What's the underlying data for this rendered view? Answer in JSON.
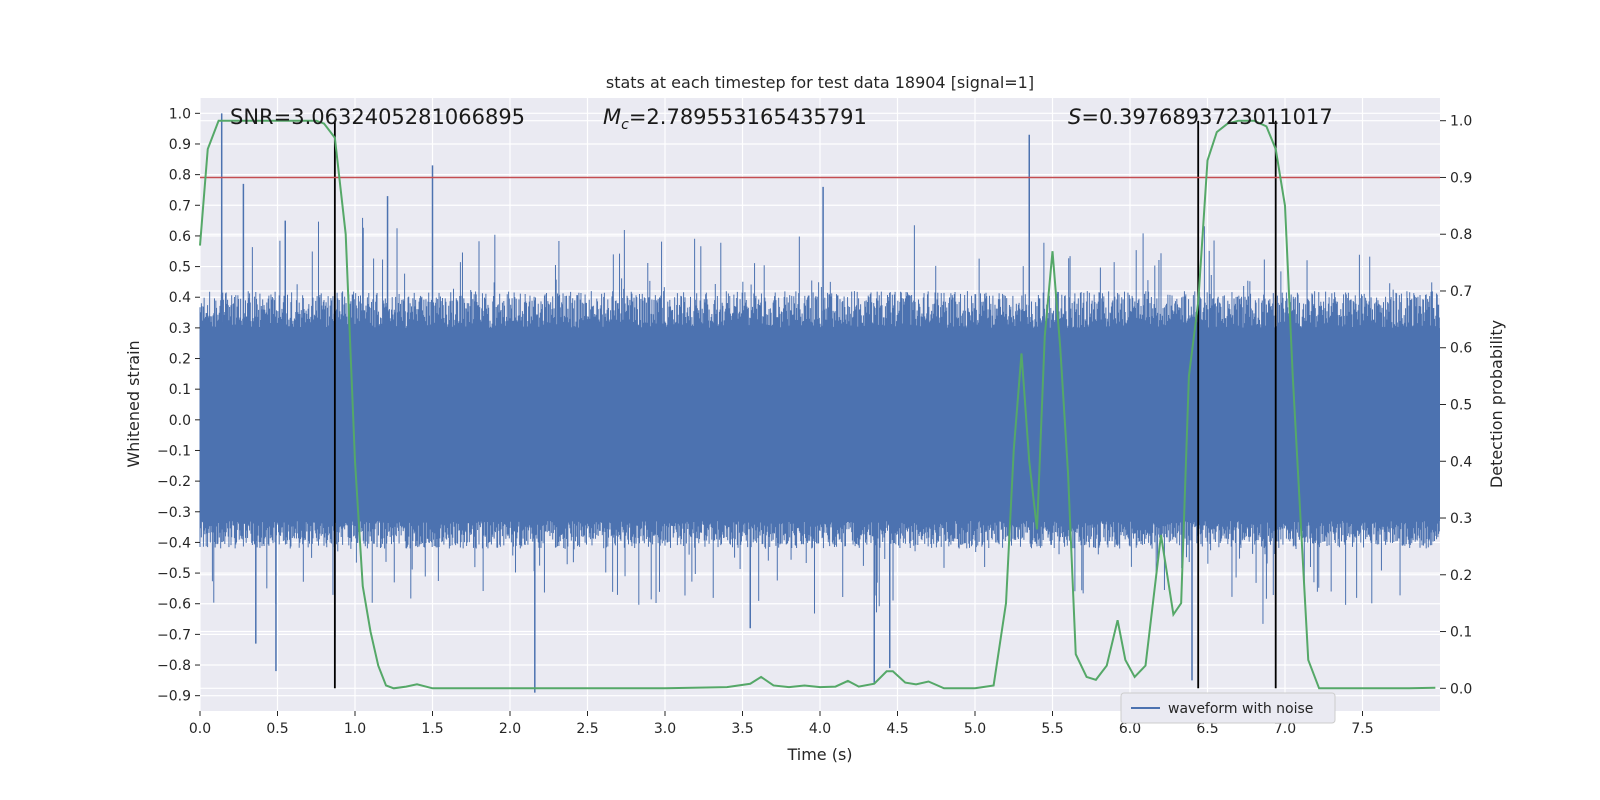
{
  "chart_data": {
    "type": "line",
    "title": "stats at each timestep for test data 18904 [signal=1]",
    "xlabel": "Time (s)",
    "ylabel_left": "Whitened strain",
    "ylabel_right": "Detection probability",
    "xlim": [
      0.0,
      8.0
    ],
    "ylim_left": [
      -0.95,
      1.05
    ],
    "ylim_right": [
      -0.04,
      1.04
    ],
    "x_ticks": [
      0.0,
      0.5,
      1.0,
      1.5,
      2.0,
      2.5,
      3.0,
      3.5,
      4.0,
      4.5,
      5.0,
      5.5,
      6.0,
      6.5,
      7.0,
      7.5
    ],
    "x_tick_labels": [
      "0.0",
      "0.5",
      "1.0",
      "1.5",
      "2.0",
      "2.5",
      "3.0",
      "3.5",
      "4.0",
      "4.5",
      "5.0",
      "5.5",
      "6.0",
      "6.5",
      "7.0",
      "7.5"
    ],
    "y_left_ticks": [
      -0.9,
      -0.8,
      -0.7,
      -0.6,
      -0.5,
      -0.4,
      -0.3,
      -0.2,
      -0.1,
      0.0,
      0.1,
      0.2,
      0.3,
      0.4,
      0.5,
      0.6,
      0.7,
      0.8,
      0.9,
      1.0
    ],
    "y_left_tick_labels": [
      "−0.9",
      "−0.8",
      "−0.7",
      "−0.6",
      "−0.5",
      "−0.4",
      "−0.3",
      "−0.2",
      "−0.1",
      "0.0",
      "0.1",
      "0.2",
      "0.3",
      "0.4",
      "0.5",
      "0.6",
      "0.7",
      "0.8",
      "0.9",
      "1.0"
    ],
    "y_right_ticks": [
      0.0,
      0.1,
      0.2,
      0.3,
      0.4,
      0.5,
      0.6,
      0.7,
      0.8,
      0.9,
      1.0
    ],
    "y_right_tick_labels": [
      "0.0",
      "0.1",
      "0.2",
      "0.3",
      "0.4",
      "0.5",
      "0.6",
      "0.7",
      "0.8",
      "0.9",
      "1.0"
    ],
    "annotations": {
      "snr": "SNR=3.0632405281066895",
      "mc_symbol": "M",
      "mc_sub": "c",
      "mc_value": "=2.789553165435791",
      "s_symbol": "S",
      "s_value": "=0.3976893723011017"
    },
    "legend": {
      "label": "waveform with noise",
      "position": "lower-right"
    },
    "threshold_line": {
      "axis": "right",
      "value": 0.9,
      "color": "#c44e52"
    },
    "vertical_lines": {
      "x": [
        0.87,
        6.44,
        6.94
      ],
      "color": "#000000"
    },
    "waveform": {
      "name": "waveform with noise",
      "color": "#4c72b0",
      "dense_band": [
        -0.33,
        0.3
      ],
      "typical_upper": 0.42,
      "typical_lower": -0.42,
      "peaks": [
        {
          "x": 0.14,
          "y": 1.0
        },
        {
          "x": 0.28,
          "y": 0.77
        },
        {
          "x": 0.55,
          "y": 0.65
        },
        {
          "x": 1.21,
          "y": 0.73
        },
        {
          "x": 1.5,
          "y": 0.83
        },
        {
          "x": 4.02,
          "y": 0.76
        },
        {
          "x": 5.35,
          "y": 0.93
        },
        {
          "x": 0.36,
          "y": -0.73
        },
        {
          "x": 0.49,
          "y": -0.82
        },
        {
          "x": 0.87,
          "y": -0.71
        },
        {
          "x": 2.16,
          "y": -0.89
        },
        {
          "x": 3.55,
          "y": -0.68
        },
        {
          "x": 4.35,
          "y": -0.86
        },
        {
          "x": 4.45,
          "y": -0.81
        },
        {
          "x": 6.4,
          "y": -0.85
        }
      ]
    },
    "detection_probability": {
      "name": "detection probability",
      "color": "#55a868",
      "x": [
        0.0,
        0.05,
        0.12,
        0.2,
        0.3,
        0.45,
        0.6,
        0.75,
        0.8,
        0.87,
        0.94,
        1.0,
        1.05,
        1.1,
        1.15,
        1.2,
        1.25,
        1.33,
        1.4,
        1.5,
        1.7,
        2.0,
        2.5,
        3.0,
        3.4,
        3.55,
        3.62,
        3.7,
        3.8,
        3.9,
        4.0,
        4.1,
        4.18,
        4.25,
        4.35,
        4.43,
        4.47,
        4.55,
        4.62,
        4.7,
        4.8,
        5.0,
        5.12,
        5.2,
        5.25,
        5.3,
        5.35,
        5.4,
        5.45,
        5.5,
        5.55,
        5.6,
        5.65,
        5.72,
        5.78,
        5.85,
        5.92,
        5.97,
        6.03,
        6.1,
        6.2,
        6.28,
        6.33,
        6.38,
        6.44,
        6.5,
        6.56,
        6.63,
        6.7,
        6.8,
        6.88,
        6.94,
        7.0,
        7.05,
        7.1,
        7.15,
        7.22,
        7.28,
        7.4,
        7.6,
        7.8,
        7.97
      ],
      "y": [
        0.78,
        0.95,
        1.0,
        1.0,
        1.0,
        1.0,
        1.0,
        1.0,
        0.995,
        0.97,
        0.8,
        0.4,
        0.18,
        0.1,
        0.04,
        0.005,
        0.0,
        0.003,
        0.007,
        0.0,
        0.0,
        0.0,
        0.0,
        0.0,
        0.002,
        0.008,
        0.02,
        0.005,
        0.002,
        0.005,
        0.002,
        0.003,
        0.013,
        0.003,
        0.008,
        0.03,
        0.03,
        0.01,
        0.007,
        0.012,
        0.0,
        0.0,
        0.005,
        0.15,
        0.42,
        0.59,
        0.4,
        0.28,
        0.62,
        0.77,
        0.6,
        0.38,
        0.06,
        0.02,
        0.015,
        0.04,
        0.12,
        0.05,
        0.02,
        0.04,
        0.27,
        0.13,
        0.15,
        0.55,
        0.68,
        0.93,
        0.98,
        0.995,
        1.0,
        1.0,
        0.99,
        0.95,
        0.85,
        0.55,
        0.3,
        0.05,
        0.0,
        0.0,
        0.0,
        0.0,
        0.0,
        0.001
      ]
    }
  }
}
